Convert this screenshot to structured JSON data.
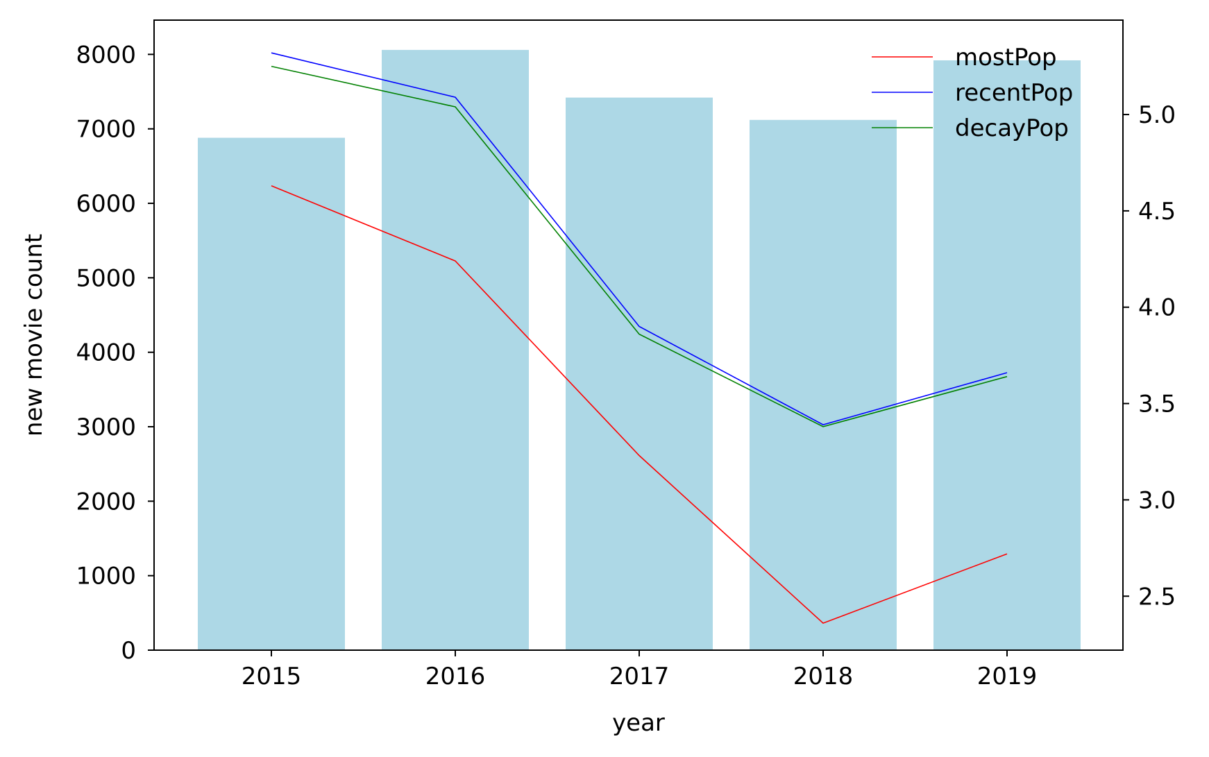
{
  "chart_data": {
    "type": "bar",
    "categories": [
      "2015",
      "2016",
      "2017",
      "2018",
      "2019"
    ],
    "bar_series": {
      "values": [
        6880,
        8060,
        7420,
        7120,
        7920
      ],
      "color": "#add8e6"
    },
    "line_series": [
      {
        "name": "mostPop",
        "color": "#ff0000",
        "values": [
          4.63,
          4.24,
          3.23,
          2.36,
          2.72
        ]
      },
      {
        "name": "recentPop",
        "color": "#0000ff",
        "values": [
          5.32,
          5.09,
          3.9,
          3.39,
          3.66
        ]
      },
      {
        "name": "decayPop",
        "color": "#008000",
        "values": [
          5.25,
          5.04,
          3.86,
          3.38,
          3.64
        ]
      }
    ],
    "title": "",
    "xlabel": "year",
    "ylabel": "new movie count",
    "ylabel_right": "",
    "ylim": [
      0,
      8460
    ],
    "ylim_right": [
      2.22,
      5.49
    ],
    "yticks": [
      0,
      1000,
      2000,
      3000,
      4000,
      5000,
      6000,
      7000,
      8000
    ],
    "yticks_right": [
      2.5,
      3.0,
      3.5,
      4.0,
      4.5,
      5.0
    ],
    "yticks_right_labels": [
      "2.5",
      "3.0",
      "3.5",
      "4.0",
      "4.5",
      "5.0"
    ],
    "grid": false,
    "legend_position": "top-right"
  }
}
